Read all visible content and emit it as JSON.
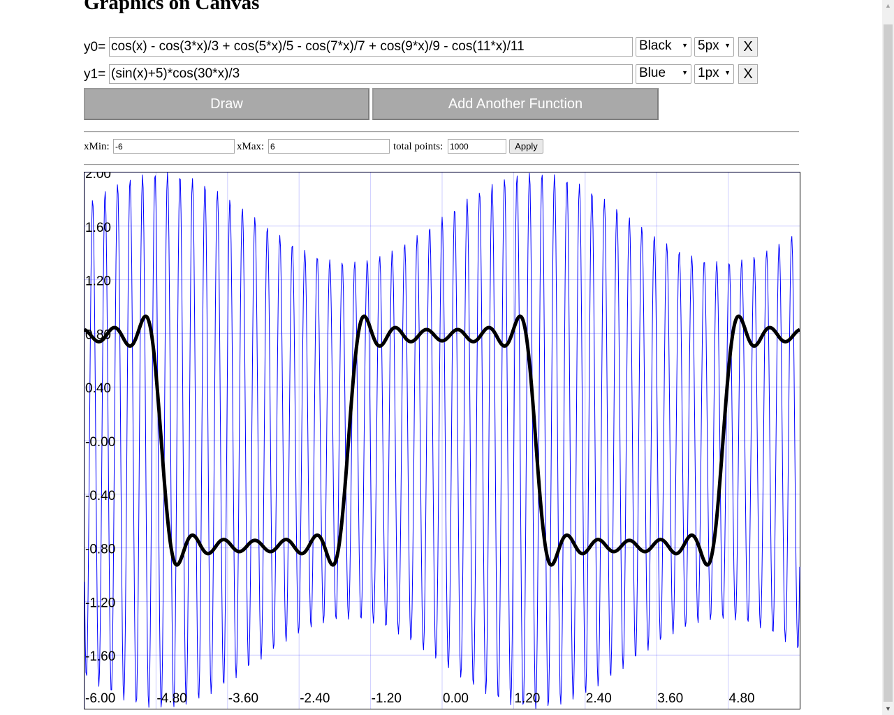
{
  "title": "Graphics on Canvas",
  "functions": [
    {
      "label": "y0=",
      "expression": "cos(x) - cos(3*x)/3 + cos(5*x)/5 - cos(7*x)/7 + cos(9*x)/9 - cos(11*x)/11",
      "color_label": "Black",
      "color": "#000000",
      "width_label": "5px",
      "remove_label": "X"
    },
    {
      "label": "y1=",
      "expression": "(sin(x)+5)*cos(30*x)/3",
      "color_label": "Blue",
      "color": "#0000ff",
      "width_label": "1px",
      "remove_label": "X"
    }
  ],
  "buttons": {
    "draw": "Draw",
    "add_function": "Add Another Function",
    "apply": "Apply"
  },
  "range": {
    "xmin_label": "xMin:",
    "xmin_value": "-6",
    "xmax_label": "xMax:",
    "xmax_value": "6",
    "points_label": "total points:",
    "points_value": "1000"
  },
  "chart_data": {
    "type": "line",
    "xlim": [
      -6,
      6
    ],
    "ylim": [
      -2,
      2
    ],
    "grid": true,
    "x_ticks": [
      "-6.00",
      "-4.80",
      "-3.60",
      "-2.40",
      "-1.20",
      "0.00",
      "1.20",
      "2.40",
      "3.60",
      "4.80"
    ],
    "y_ticks": [
      "2.00",
      "1.60",
      "1.20",
      "0.80",
      "0.40",
      "-0.00",
      "-0.40",
      "-0.80",
      "-1.20",
      "-1.60"
    ],
    "series": [
      {
        "expression": "cos(x) - cos(3*x)/3 + cos(5*x)/5 - cos(7*x)/7 + cos(9*x)/9 - cos(11*x)/11",
        "color": "#000000",
        "line_width": 5,
        "points": 1000
      },
      {
        "expression": "(sin(x)+5)*cos(30*x)/3",
        "color": "#0000ff",
        "line_width": 1,
        "points": 1000
      }
    ]
  },
  "icons": {
    "dropdown_arrow": "▼",
    "scroll_up": "▲",
    "scroll_down": "▼"
  }
}
